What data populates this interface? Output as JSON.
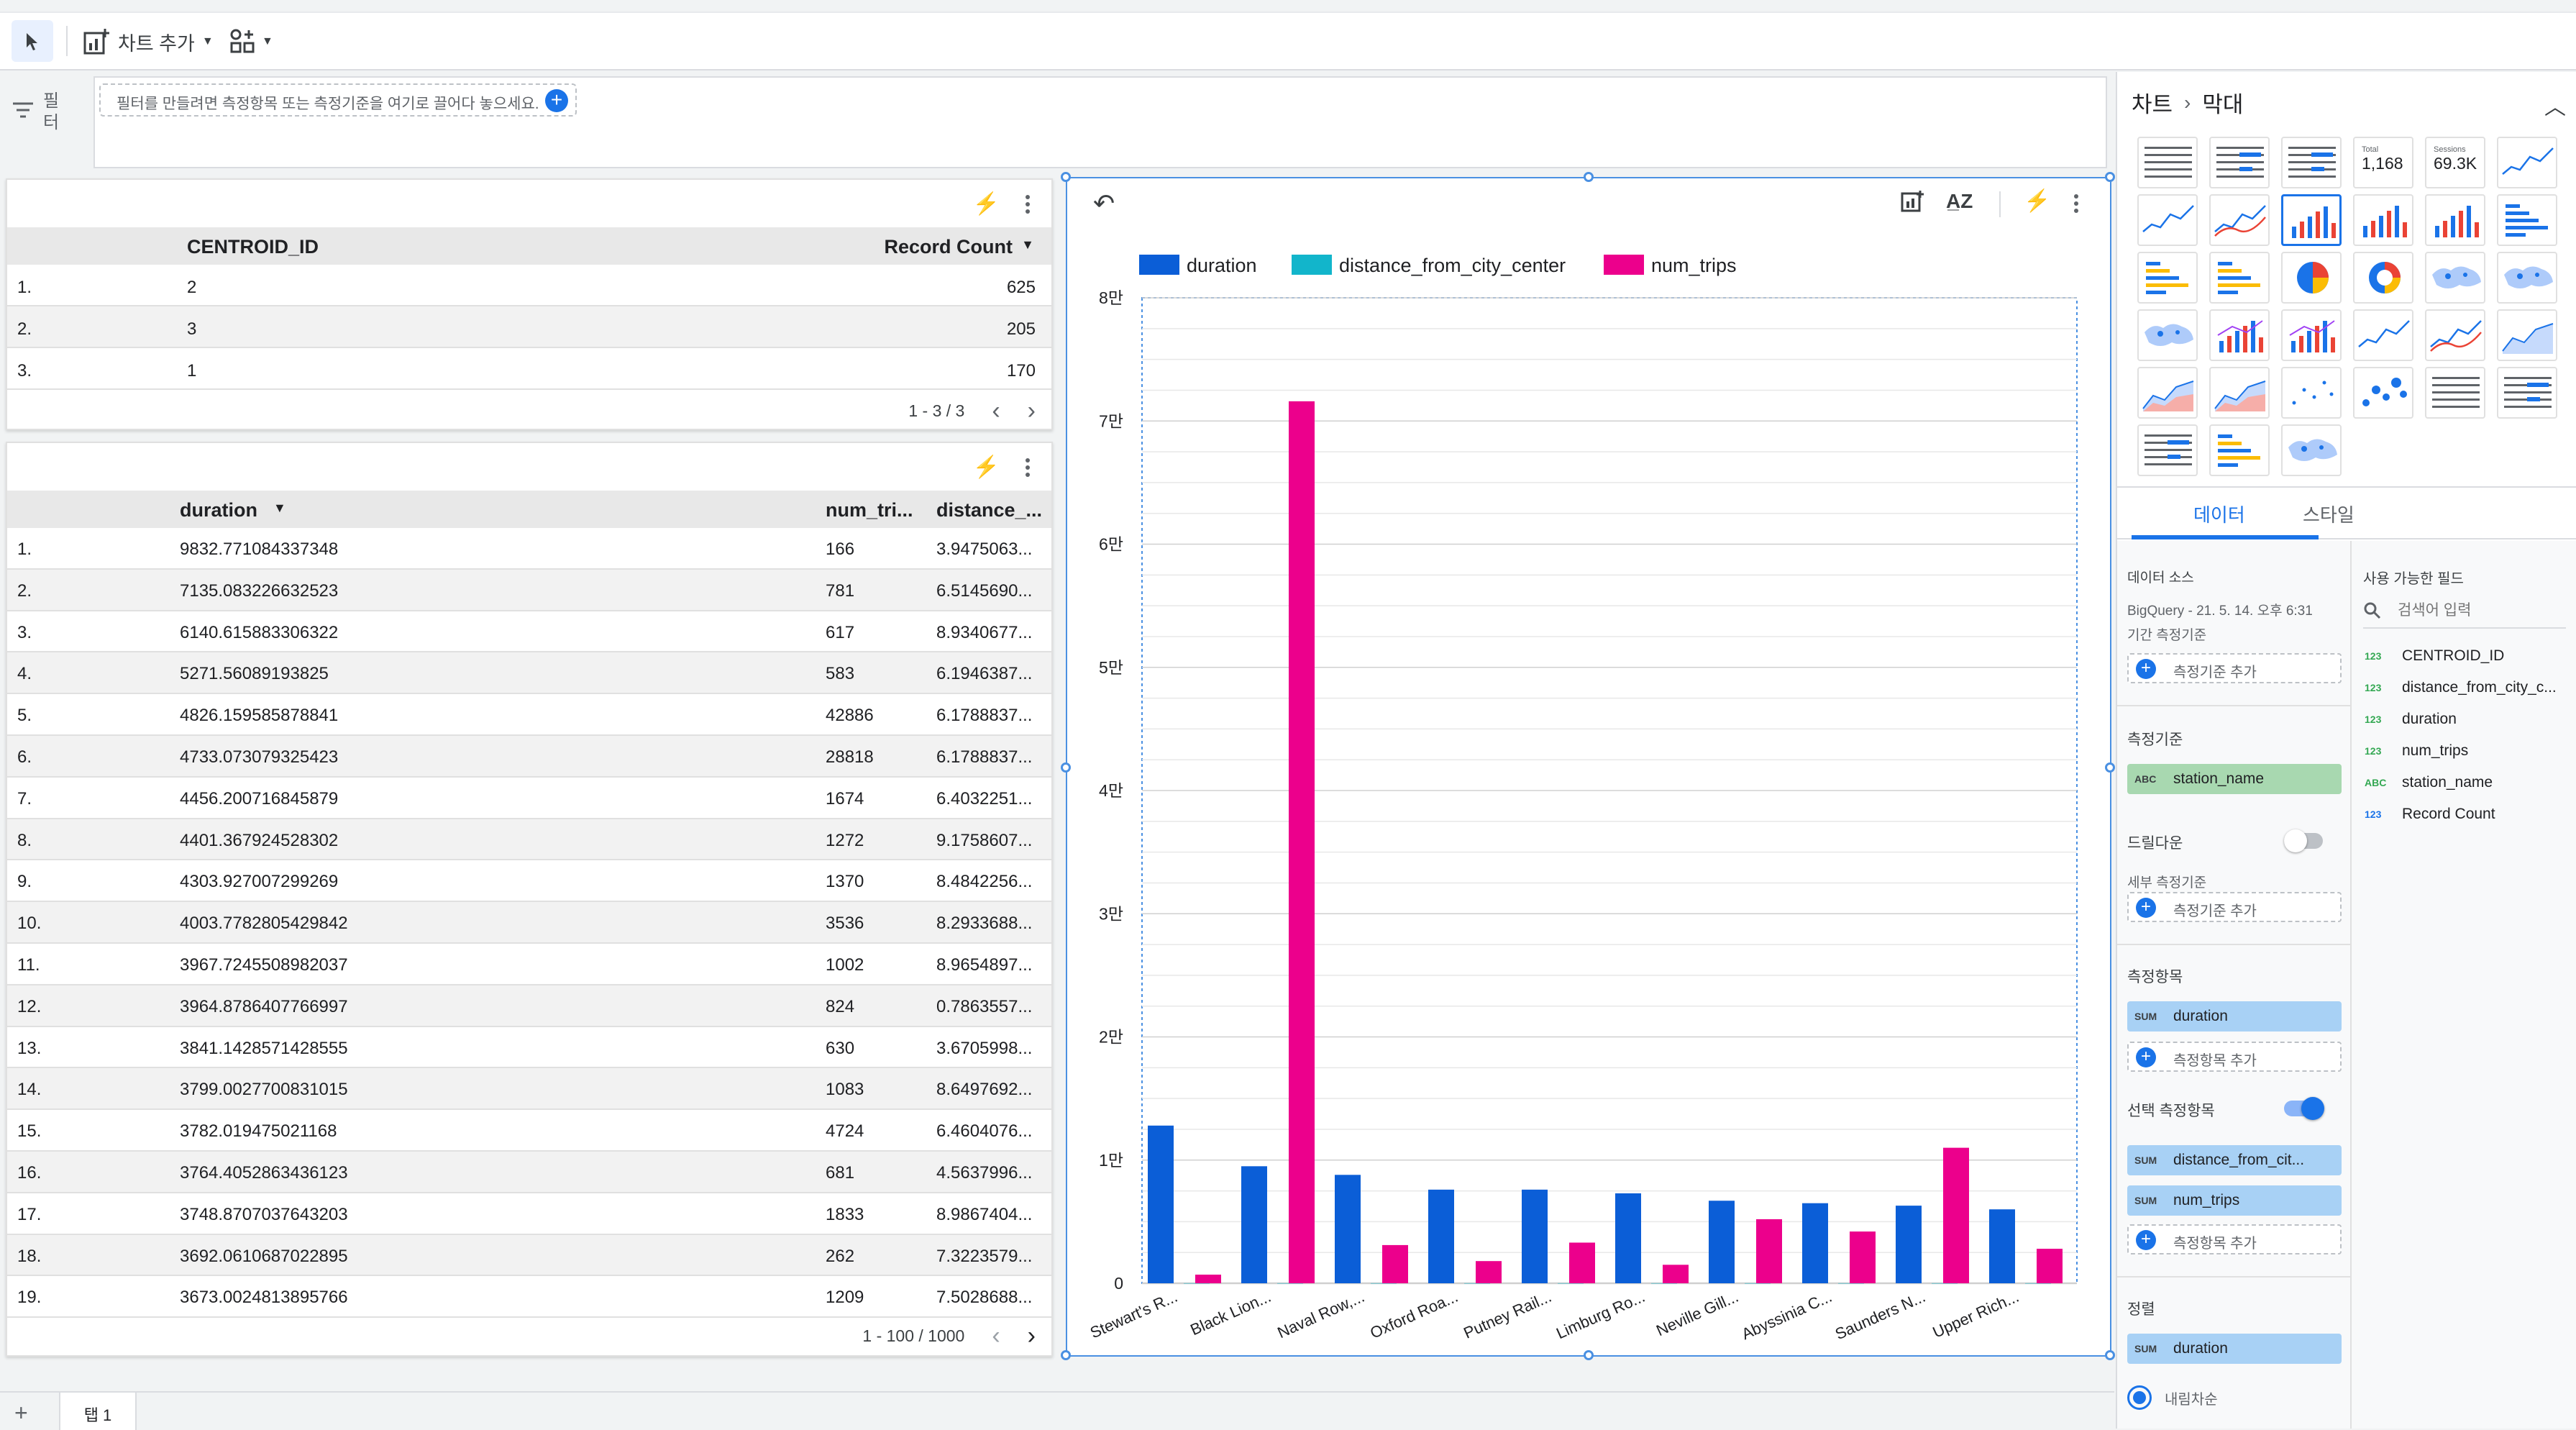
{
  "toolbar": {
    "add_chart_label": "차트 추가",
    "icons": [
      "cursor-arrow-icon",
      "add-chart-icon",
      "add-control-icon"
    ]
  },
  "filter": {
    "label": "필터",
    "placeholder": "필터를 만들려면 측정항목 또는 측정기준을 여기로 끌어다 놓으세요."
  },
  "table1": {
    "headers": [
      "CENTROID_ID",
      "Record Count"
    ],
    "rows": [
      {
        "idx": "1.",
        "centroid": "2",
        "count": "625"
      },
      {
        "idx": "2.",
        "centroid": "3",
        "count": "205"
      },
      {
        "idx": "3.",
        "centroid": "1",
        "count": "170"
      }
    ],
    "pager": "1 - 3 / 3"
  },
  "table2": {
    "headers": [
      "duration",
      "num_tri...",
      "distance_..."
    ],
    "rows": [
      {
        "idx": "1.",
        "duration": "9832.771084337348",
        "num_trips": "166",
        "distance": "3.9475063..."
      },
      {
        "idx": "2.",
        "duration": "7135.083226632523",
        "num_trips": "781",
        "distance": "6.5145690..."
      },
      {
        "idx": "3.",
        "duration": "6140.615883306322",
        "num_trips": "617",
        "distance": "8.9340677..."
      },
      {
        "idx": "4.",
        "duration": "5271.56089193825",
        "num_trips": "583",
        "distance": "6.1946387..."
      },
      {
        "idx": "5.",
        "duration": "4826.159585878841",
        "num_trips": "42886",
        "distance": "6.1788837..."
      },
      {
        "idx": "6.",
        "duration": "4733.073079325423",
        "num_trips": "28818",
        "distance": "6.1788837..."
      },
      {
        "idx": "7.",
        "duration": "4456.200716845879",
        "num_trips": "1674",
        "distance": "6.4032251..."
      },
      {
        "idx": "8.",
        "duration": "4401.367924528302",
        "num_trips": "1272",
        "distance": "9.1758607..."
      },
      {
        "idx": "9.",
        "duration": "4303.927007299269",
        "num_trips": "1370",
        "distance": "8.4842256..."
      },
      {
        "idx": "10.",
        "duration": "4003.7782805429842",
        "num_trips": "3536",
        "distance": "8.2933688..."
      },
      {
        "idx": "11.",
        "duration": "3967.7245508982037",
        "num_trips": "1002",
        "distance": "8.9654897..."
      },
      {
        "idx": "12.",
        "duration": "3964.8786407766997",
        "num_trips": "824",
        "distance": "0.7863557..."
      },
      {
        "idx": "13.",
        "duration": "3841.1428571428555",
        "num_trips": "630",
        "distance": "3.6705998..."
      },
      {
        "idx": "14.",
        "duration": "3799.0027700831015",
        "num_trips": "1083",
        "distance": "8.6497692..."
      },
      {
        "idx": "15.",
        "duration": "3782.019475021168",
        "num_trips": "4724",
        "distance": "6.4604076..."
      },
      {
        "idx": "16.",
        "duration": "3764.4052863436123",
        "num_trips": "681",
        "distance": "4.5637996..."
      },
      {
        "idx": "17.",
        "duration": "3748.8707037643203",
        "num_trips": "1833",
        "distance": "8.9867404..."
      },
      {
        "idx": "18.",
        "duration": "3692.0610687022895",
        "num_trips": "262",
        "distance": "7.3223579..."
      },
      {
        "idx": "19.",
        "duration": "3673.0024813895766",
        "num_trips": "1209",
        "distance": "7.5028688..."
      }
    ],
    "pager": "1 - 100 / 1000"
  },
  "chart_data": {
    "type": "bar",
    "title": "",
    "ylim": [
      0,
      80000
    ],
    "yticks": [
      "0",
      "1만",
      "2만",
      "3만",
      "4만",
      "5만",
      "6만",
      "7만",
      "8만"
    ],
    "categories": [
      "Stewart's R...",
      "Black Lion...",
      "Naval Row,...",
      "Oxford Roa...",
      "Putney Rail...",
      "Limburg Ro...",
      "Neville Gill...",
      "Abyssinia C...",
      "Saunders N...",
      "Upper Rich..."
    ],
    "series": [
      {
        "name": "duration",
        "color": "#0b5ed7",
        "values": [
          12800,
          9500,
          8800,
          7600,
          7600,
          7300,
          6700,
          6500,
          6300,
          6000
        ]
      },
      {
        "name": "distance_from_city_center",
        "color": "#12b5cb",
        "values": [
          6,
          6,
          6,
          6,
          6,
          6,
          6,
          6,
          6,
          6
        ]
      },
      {
        "name": "num_trips",
        "color": "#ec008c",
        "values": [
          700,
          71600,
          3100,
          1800,
          3300,
          1500,
          5200,
          4200,
          11000,
          2800
        ]
      }
    ]
  },
  "panel": {
    "breadcrumb_root": "차트",
    "breadcrumb_leaf": "막대",
    "chart_types": [
      {
        "name": "table-icon"
      },
      {
        "name": "table-bars-icon"
      },
      {
        "name": "table-heatmap-icon"
      },
      {
        "name": "scorecard-icon",
        "line1": "Total",
        "line2": "1,168"
      },
      {
        "name": "scorecard-compact-icon",
        "line1": "Sessions",
        "line2": "69.3K"
      },
      {
        "name": "timeseries-icon"
      },
      {
        "name": "sparkline-icon"
      },
      {
        "name": "smoothed-line-icon"
      },
      {
        "name": "column-icon",
        "selected": true
      },
      {
        "name": "stacked-column-icon"
      },
      {
        "name": "100-stacked-column-icon"
      },
      {
        "name": "bar-icon"
      },
      {
        "name": "stacked-bar-icon"
      },
      {
        "name": "100-stacked-bar-icon"
      },
      {
        "name": "pie-icon"
      },
      {
        "name": "donut-icon"
      },
      {
        "name": "geo-map-icon"
      },
      {
        "name": "geo-map-filled-icon"
      },
      {
        "name": "google-map-icon"
      },
      {
        "name": "combo-chart-icon"
      },
      {
        "name": "stacked-combo-icon"
      },
      {
        "name": "line-chart-icon"
      },
      {
        "name": "smooth-line-chart-icon"
      },
      {
        "name": "area-icon"
      },
      {
        "name": "stacked-area-icon"
      },
      {
        "name": "100-area-icon"
      },
      {
        "name": "scatter-icon"
      },
      {
        "name": "bubble-icon"
      },
      {
        "name": "pivot-table-icon"
      },
      {
        "name": "pivot-heatmap-icon"
      },
      {
        "name": "pivot-bars-icon"
      },
      {
        "name": "bullet-icon"
      },
      {
        "name": "treemap-icon"
      }
    ],
    "tab_data": "데이터",
    "tab_style": "스타일",
    "data_source_title": "데이터 소스",
    "data_source_value": "BigQuery - 21. 5. 14. 오후 6:31",
    "date_range_title": "기간 측정기준",
    "add_dimension": "측정기준 추가",
    "dimension_title": "측정기준",
    "dimension_value": "station_name",
    "drilldown_title": "드릴다운",
    "drilldown_on": false,
    "breakdown_title": "세부 측정기준",
    "metric_title": "측정항목",
    "metric_value": "duration",
    "add_metric": "측정항목 추가",
    "optional_metric_title": "선택 측정항목",
    "optional_metric_on": true,
    "optional_metrics": [
      "distance_from_cit...",
      "num_trips"
    ],
    "sort_title": "정렬",
    "sort_value": "duration",
    "sort_order": "내림차순",
    "abc_tag": "ABC",
    "sum_tag": "SUM",
    "fields_title": "사용 가능한 필드",
    "fields_search_placeholder": "검색어 입력",
    "fields": [
      {
        "type": "123",
        "name": "CENTROID_ID"
      },
      {
        "type": "123",
        "name": "distance_from_city_c..."
      },
      {
        "type": "123",
        "name": "duration"
      },
      {
        "type": "123",
        "name": "num_trips"
      },
      {
        "type": "ABC",
        "name": "station_name"
      },
      {
        "type": "123",
        "name": "Record Count"
      }
    ]
  },
  "bottom": {
    "add_page": "+",
    "page_tab": "탭 1"
  }
}
